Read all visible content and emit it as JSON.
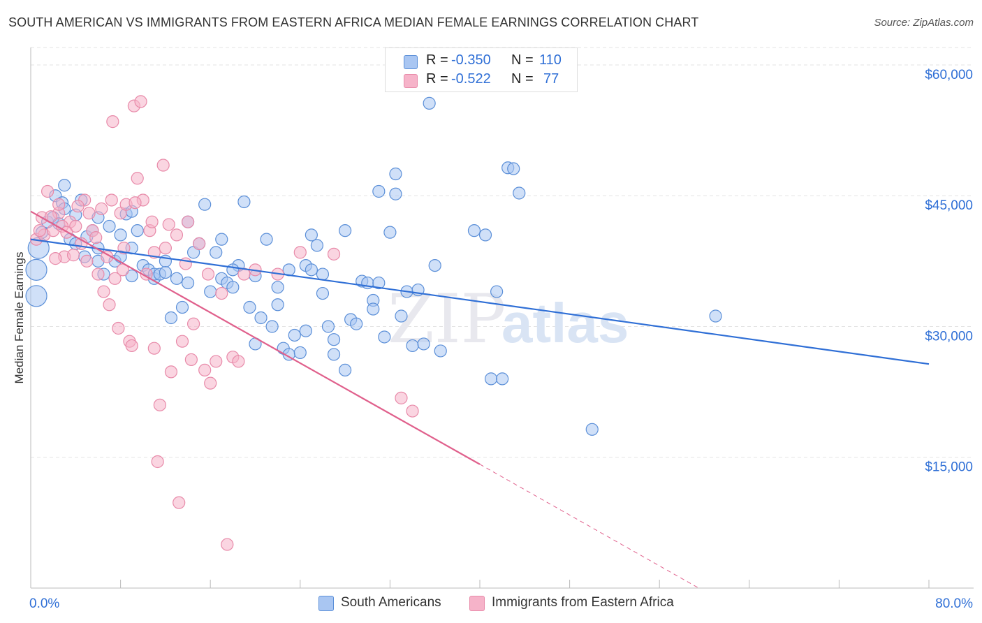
{
  "chart_data": {
    "type": "scatter",
    "title": "SOUTH AMERICAN VS IMMIGRANTS FROM EASTERN AFRICA MEDIAN FEMALE EARNINGS CORRELATION CHART",
    "source": "Source: ZipAtlas.com",
    "xlabel": "",
    "ylabel": "Median Female Earnings",
    "xlim": [
      0,
      80
    ],
    "ylim": [
      0,
      62000
    ],
    "x_tick_labels": [
      "0.0%",
      "80.0%"
    ],
    "y_ticks": [
      15000,
      30000,
      45000,
      60000
    ],
    "y_tick_labels": [
      "$15,000",
      "$30,000",
      "$45,000",
      "$60,000"
    ],
    "watermark": "ZIPatlas",
    "colors": {
      "blue_fill": "#a9c6f2",
      "blue_stroke": "#5b8fd8",
      "blue_line": "#2f6fd6",
      "pink_fill": "#f6b3c9",
      "pink_stroke": "#e88aa9",
      "pink_line": "#e0608c",
      "axis_label_blue": "#2f6fd6",
      "grid": "#e3e3e3"
    },
    "legend": {
      "rows": [
        {
          "r_label": "R =",
          "r_value": "-0.350",
          "n_label": "N =",
          "n_value": "110"
        },
        {
          "r_label": "R =",
          "r_value": "-0.522",
          "n_label": "N =",
          "n_value": "77"
        }
      ]
    },
    "series": [
      {
        "name": "South Americans",
        "trend": {
          "x": [
            0,
            80
          ],
          "y": [
            40000,
            25700
          ]
        },
        "points": [
          [
            0.5,
            33500
          ],
          [
            0.5,
            36500
          ],
          [
            0.7,
            39000
          ],
          [
            1,
            40800
          ],
          [
            1.5,
            42000
          ],
          [
            2,
            42500
          ],
          [
            2.2,
            45000
          ],
          [
            2.5,
            41800
          ],
          [
            2.8,
            44200
          ],
          [
            3,
            43500
          ],
          [
            3,
            46200
          ],
          [
            4,
            42800
          ],
          [
            4.5,
            44500
          ],
          [
            4.8,
            38000
          ],
          [
            5,
            40300
          ],
          [
            5.5,
            41000
          ],
          [
            6,
            42500
          ],
          [
            6,
            39000
          ],
          [
            6.5,
            36000
          ],
          [
            7,
            41500
          ],
          [
            7.5,
            37500
          ],
          [
            8,
            38000
          ],
          [
            8.5,
            42900
          ],
          [
            9,
            35800
          ],
          [
            9,
            39000
          ],
          [
            9.5,
            41000
          ],
          [
            10,
            37000
          ],
          [
            10.5,
            36500
          ],
          [
            11,
            35500
          ],
          [
            11,
            36000
          ],
          [
            11.5,
            36000
          ],
          [
            12,
            37500
          ],
          [
            12.5,
            31000
          ],
          [
            13,
            35500
          ],
          [
            13.5,
            32200
          ],
          [
            14,
            35000
          ],
          [
            14.5,
            38500
          ],
          [
            15,
            39500
          ],
          [
            15.5,
            44000
          ],
          [
            16,
            34000
          ],
          [
            16.5,
            38500
          ],
          [
            17,
            35500
          ],
          [
            17,
            40000
          ],
          [
            17.5,
            35000
          ],
          [
            18,
            34500
          ],
          [
            18.5,
            37000
          ],
          [
            19,
            44300
          ],
          [
            19.5,
            32200
          ],
          [
            20,
            35800
          ],
          [
            20.5,
            31000
          ],
          [
            21,
            40000
          ],
          [
            21.5,
            30000
          ],
          [
            22,
            32500
          ],
          [
            22.5,
            27500
          ],
          [
            23,
            26800
          ],
          [
            23,
            36500
          ],
          [
            23.5,
            29000
          ],
          [
            24,
            27000
          ],
          [
            24.5,
            29500
          ],
          [
            24.5,
            37000
          ],
          [
            25,
            36500
          ],
          [
            25.5,
            39300
          ],
          [
            26,
            33800
          ],
          [
            26.5,
            30000
          ],
          [
            27,
            26800
          ],
          [
            27,
            28500
          ],
          [
            28,
            25000
          ],
          [
            28,
            41000
          ],
          [
            28.5,
            30800
          ],
          [
            29,
            30300
          ],
          [
            29.5,
            35200
          ],
          [
            30,
            35000
          ],
          [
            30.5,
            33000
          ],
          [
            31,
            45500
          ],
          [
            31,
            35000
          ],
          [
            31.5,
            28800
          ],
          [
            32,
            40800
          ],
          [
            32.5,
            47500
          ],
          [
            32.5,
            45200
          ],
          [
            33,
            31200
          ],
          [
            33.5,
            34000
          ],
          [
            34,
            27800
          ],
          [
            34.5,
            34200
          ],
          [
            35,
            28000
          ],
          [
            35.5,
            55600
          ],
          [
            36,
            37000
          ],
          [
            36.5,
            27200
          ],
          [
            39.5,
            41000
          ],
          [
            40.5,
            40500
          ],
          [
            41,
            24000
          ],
          [
            42,
            24000
          ],
          [
            41.5,
            34000
          ],
          [
            42.5,
            48200
          ],
          [
            43,
            48100
          ],
          [
            43.5,
            45300
          ],
          [
            61,
            31200
          ],
          [
            50,
            18200
          ],
          [
            14,
            42000
          ],
          [
            20,
            28000
          ],
          [
            25,
            40500
          ],
          [
            30.5,
            32000
          ],
          [
            8,
            40500
          ],
          [
            3.5,
            40000
          ],
          [
            12,
            36200
          ],
          [
            18,
            36500
          ],
          [
            22,
            34500
          ],
          [
            26,
            36000
          ],
          [
            9,
            43200
          ],
          [
            6,
            37500
          ],
          [
            4,
            39500
          ]
        ]
      },
      {
        "name": "Immigrants from Eastern Africa",
        "trend": {
          "x": [
            0,
            40
          ],
          "y": [
            43200,
            14200
          ]
        },
        "trend_dashed": {
          "x": [
            40,
            59.5
          ],
          "y": [
            14200,
            0
          ]
        },
        "points": [
          [
            0.5,
            40000
          ],
          [
            1,
            42500
          ],
          [
            1.2,
            40500
          ],
          [
            1.5,
            45500
          ],
          [
            2,
            41000
          ],
          [
            2.5,
            43000
          ],
          [
            3,
            38000
          ],
          [
            3.5,
            42000
          ],
          [
            4,
            41500
          ],
          [
            4.5,
            39500
          ],
          [
            4.8,
            44500
          ],
          [
            5,
            37500
          ],
          [
            5.2,
            43000
          ],
          [
            5.5,
            41000
          ],
          [
            6,
            36000
          ],
          [
            6.5,
            34000
          ],
          [
            6.8,
            38000
          ],
          [
            7,
            32500
          ],
          [
            7.2,
            44500
          ],
          [
            7.5,
            35500
          ],
          [
            7.8,
            29800
          ],
          [
            8,
            43000
          ],
          [
            8.3,
            39000
          ],
          [
            8.5,
            44000
          ],
          [
            8.8,
            28300
          ],
          [
            9,
            27800
          ],
          [
            9.2,
            55300
          ],
          [
            9.5,
            47000
          ],
          [
            9.8,
            55800
          ],
          [
            10,
            44500
          ],
          [
            10.3,
            36000
          ],
          [
            10.6,
            41000
          ],
          [
            11,
            38500
          ],
          [
            11,
            27500
          ],
          [
            11.3,
            14500
          ],
          [
            11.5,
            21000
          ],
          [
            11.8,
            48500
          ],
          [
            12,
            39000
          ],
          [
            12.5,
            24800
          ],
          [
            13,
            40500
          ],
          [
            13.2,
            9800
          ],
          [
            13.5,
            28300
          ],
          [
            14,
            42000
          ],
          [
            14.3,
            26200
          ],
          [
            14.5,
            30300
          ],
          [
            15,
            39500
          ],
          [
            15.5,
            25000
          ],
          [
            16,
            23500
          ],
          [
            16.5,
            26000
          ],
          [
            17,
            33800
          ],
          [
            17.5,
            5000
          ],
          [
            18,
            26500
          ],
          [
            18.5,
            26000
          ],
          [
            19,
            36000
          ],
          [
            20,
            36500
          ],
          [
            22,
            36000
          ],
          [
            24,
            38500
          ],
          [
            27,
            38300
          ],
          [
            33,
            21800
          ],
          [
            34,
            20300
          ],
          [
            2.8,
            41500
          ],
          [
            3.8,
            38200
          ],
          [
            5.8,
            40200
          ],
          [
            7.3,
            53500
          ],
          [
            0.8,
            41000
          ],
          [
            2.2,
            37800
          ],
          [
            6.3,
            43500
          ],
          [
            9.3,
            44200
          ],
          [
            12.3,
            41700
          ],
          [
            15.8,
            36000
          ],
          [
            1.8,
            42600
          ],
          [
            4.2,
            43800
          ],
          [
            10.8,
            42000
          ],
          [
            13.8,
            37200
          ],
          [
            8.2,
            36500
          ],
          [
            3.2,
            40800
          ],
          [
            2.5,
            44000
          ]
        ]
      }
    ]
  }
}
